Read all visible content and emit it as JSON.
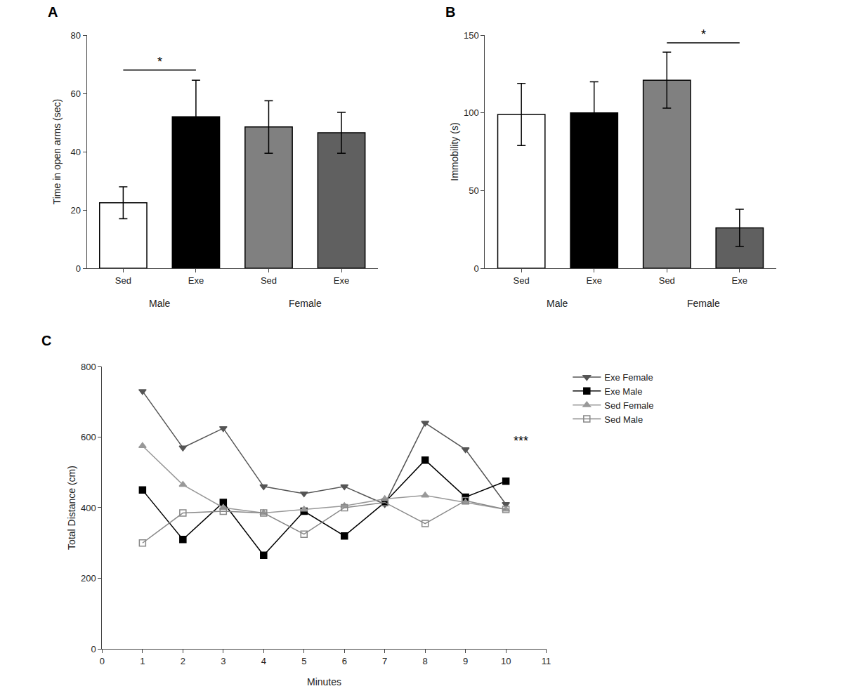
{
  "chart_data": [
    {
      "type": "bar",
      "panel_label": "A",
      "categories": [
        "Sed",
        "Exe",
        "Sed",
        "Exe"
      ],
      "groups": [
        {
          "label": "Male",
          "span": [
            0,
            1
          ]
        },
        {
          "label": "Female",
          "span": [
            2,
            3
          ]
        }
      ],
      "values": [
        22.5,
        52,
        48.5,
        46.5
      ],
      "errors": [
        5.5,
        12.5,
        9,
        7
      ],
      "colors": [
        "white",
        "black",
        "#808080",
        "#606060"
      ],
      "edge_colors": [
        "black",
        "black",
        "black",
        "black"
      ],
      "ylabel": "Time in open arms (sec)",
      "ylim": [
        0,
        80
      ],
      "yticks": [
        0,
        20,
        40,
        60,
        80
      ],
      "significance": [
        {
          "from": 0,
          "to": 1,
          "y": 68,
          "text": "*"
        }
      ],
      "grid": false
    },
    {
      "type": "bar",
      "panel_label": "B",
      "categories": [
        "Sed",
        "Exe",
        "Sed",
        "Exe"
      ],
      "groups": [
        {
          "label": "Male",
          "span": [
            0,
            1
          ]
        },
        {
          "label": "Female",
          "span": [
            2,
            3
          ]
        }
      ],
      "values": [
        99,
        100,
        121,
        26
      ],
      "errors": [
        20,
        20,
        18,
        12
      ],
      "colors": [
        "white",
        "black",
        "#808080",
        "#606060"
      ],
      "edge_colors": [
        "black",
        "black",
        "black",
        "black"
      ],
      "ylabel": "Immobility (s)",
      "ylim": [
        0,
        150
      ],
      "yticks": [
        0,
        50,
        100,
        150
      ],
      "significance": [
        {
          "from": 2,
          "to": 3,
          "y": 145,
          "text": "*"
        }
      ],
      "grid": false
    },
    {
      "type": "line",
      "panel_label": "C",
      "x": [
        1,
        2,
        3,
        4,
        5,
        6,
        7,
        8,
        9,
        10
      ],
      "series": [
        {
          "name": "Exe Female",
          "color": "#555555",
          "marker": "triangle-down",
          "values": [
            730,
            570,
            625,
            460,
            440,
            460,
            410,
            640,
            565,
            410
          ]
        },
        {
          "name": "Exe Male",
          "color": "#000000",
          "marker": "square",
          "values": [
            450,
            310,
            415,
            265,
            390,
            320,
            415,
            535,
            430,
            475
          ]
        },
        {
          "name": "Sed Female",
          "color": "#999999",
          "marker": "triangle-up",
          "values": [
            575,
            465,
            400,
            385,
            395,
            405,
            425,
            435,
            415,
            395
          ]
        },
        {
          "name": "Sed Male",
          "color": "#888888",
          "marker": "square-open",
          "values": [
            300,
            385,
            390,
            385,
            325,
            400,
            415,
            355,
            420,
            395
          ]
        }
      ],
      "xlabel": "Minutes",
      "ylabel": "Total Distance (cm)",
      "xlim": [
        0,
        11
      ],
      "xticks": [
        0,
        1,
        2,
        3,
        4,
        5,
        6,
        7,
        8,
        9,
        10,
        11
      ],
      "ylim": [
        0,
        800
      ],
      "yticks": [
        0,
        200,
        400,
        600,
        800
      ],
      "annotations": [
        {
          "text": "***",
          "x": 10.15,
          "y": 590
        }
      ],
      "legend": "outside right",
      "grid": false
    }
  ]
}
